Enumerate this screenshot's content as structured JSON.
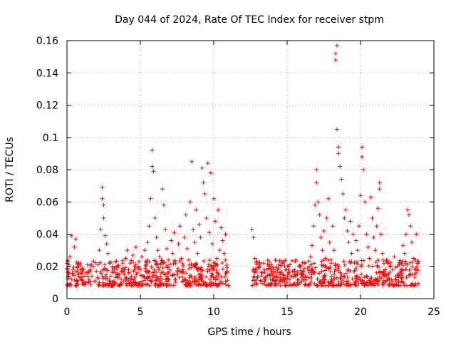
{
  "chart_data": {
    "type": "scatter",
    "title": "Day 044 of 2024, Rate Of TEC Index for receiver stpm",
    "xlabel": "GPS time / hours",
    "ylabel": "ROTI / TECUs",
    "xlim": [
      0,
      25
    ],
    "ylim": [
      0,
      0.16
    ],
    "xticks": [
      0,
      5,
      10,
      15,
      20,
      25
    ],
    "yticks": [
      0,
      0.02,
      0.04,
      0.06,
      0.08,
      0.1,
      0.12,
      0.14,
      0.16
    ],
    "xtick_labels": [
      "0",
      "5",
      "10",
      "15",
      "20",
      "25"
    ],
    "ytick_labels": [
      "0",
      "0.02",
      "0.04",
      "0.06",
      "0.08",
      "0.1",
      "0.12",
      "0.14",
      "0.16"
    ],
    "grid": true,
    "marker": "+",
    "color": "#ff0000",
    "series": [
      {
        "name": "ROTI",
        "points": [
          [
            0.1,
            0.014
          ],
          [
            0.2,
            0.026
          ],
          [
            0.3,
            0.039
          ],
          [
            0.3,
            0.012
          ],
          [
            0.4,
            0.018
          ],
          [
            0.5,
            0.032
          ],
          [
            0.6,
            0.037
          ],
          [
            0.7,
            0.02
          ],
          [
            0.8,
            0.015
          ],
          [
            0.9,
            0.022
          ],
          [
            1.0,
            0.012
          ],
          [
            1.1,
            0.018
          ],
          [
            1.2,
            0.01
          ],
          [
            1.3,
            0.016
          ],
          [
            1.4,
            0.021
          ],
          [
            1.5,
            0.012
          ],
          [
            1.6,
            0.018
          ],
          [
            1.7,
            0.014
          ],
          [
            1.8,
            0.02
          ],
          [
            1.9,
            0.011
          ],
          [
            2.0,
            0.017
          ],
          [
            2.1,
            0.021
          ],
          [
            2.2,
            0.03
          ],
          [
            2.3,
            0.043
          ],
          [
            2.4,
            0.069
          ],
          [
            2.4,
            0.062
          ],
          [
            2.5,
            0.058
          ],
          [
            2.5,
            0.05
          ],
          [
            2.6,
            0.039
          ],
          [
            2.7,
            0.034
          ],
          [
            2.8,
            0.028
          ],
          [
            2.9,
            0.022
          ],
          [
            3.0,
            0.014
          ],
          [
            3.1,
            0.019
          ],
          [
            3.2,
            0.011
          ],
          [
            3.3,
            0.016
          ],
          [
            3.4,
            0.02
          ],
          [
            3.5,
            0.013
          ],
          [
            3.6,
            0.008
          ],
          [
            3.7,
            0.017
          ],
          [
            3.8,
            0.022
          ],
          [
            3.9,
            0.015
          ],
          [
            4.0,
            0.025
          ],
          [
            4.1,
            0.03
          ],
          [
            4.2,
            0.018
          ],
          [
            4.3,
            0.022
          ],
          [
            4.4,
            0.014
          ],
          [
            4.5,
            0.027
          ],
          [
            4.6,
            0.02
          ],
          [
            4.7,
            0.032
          ],
          [
            4.8,
            0.016
          ],
          [
            4.9,
            0.023
          ],
          [
            5.0,
            0.018
          ],
          [
            5.1,
            0.026
          ],
          [
            5.2,
            0.014
          ],
          [
            5.3,
            0.03
          ],
          [
            5.4,
            0.021
          ],
          [
            5.5,
            0.035
          ],
          [
            5.6,
            0.045
          ],
          [
            5.7,
            0.062
          ],
          [
            5.8,
            0.082
          ],
          [
            5.8,
            0.092
          ],
          [
            5.9,
            0.079
          ],
          [
            6.0,
            0.05
          ],
          [
            6.1,
            0.038
          ],
          [
            6.2,
            0.03
          ],
          [
            6.3,
            0.026
          ],
          [
            6.4,
            0.022
          ],
          [
            6.5,
            0.068
          ],
          [
            6.6,
            0.058
          ],
          [
            6.7,
            0.043
          ],
          [
            6.8,
            0.031
          ],
          [
            6.9,
            0.024
          ],
          [
            7.0,
            0.018
          ],
          [
            7.1,
            0.036
          ],
          [
            7.2,
            0.028
          ],
          [
            7.3,
            0.041
          ],
          [
            7.4,
            0.022
          ],
          [
            7.5,
            0.015
          ],
          [
            7.6,
            0.034
          ],
          [
            7.7,
            0.045
          ],
          [
            7.8,
            0.025
          ],
          [
            7.9,
            0.018
          ],
          [
            8.0,
            0.038
          ],
          [
            8.1,
            0.052
          ],
          [
            8.2,
            0.031
          ],
          [
            8.3,
            0.024
          ],
          [
            8.4,
            0.06
          ],
          [
            8.5,
            0.085
          ],
          [
            8.6,
            0.043
          ],
          [
            8.7,
            0.035
          ],
          [
            8.8,
            0.055
          ],
          [
            8.9,
            0.028
          ],
          [
            9.0,
            0.046
          ],
          [
            9.1,
            0.038
          ],
          [
            9.2,
            0.081
          ],
          [
            9.3,
            0.072
          ],
          [
            9.4,
            0.065
          ],
          [
            9.5,
            0.05
          ],
          [
            9.6,
            0.084
          ],
          [
            9.7,
            0.041
          ],
          [
            9.8,
            0.078
          ],
          [
            9.9,
            0.034
          ],
          [
            10.0,
            0.062
          ],
          [
            10.1,
            0.048
          ],
          [
            10.2,
            0.025
          ],
          [
            10.3,
            0.055
          ],
          [
            10.4,
            0.03
          ],
          [
            10.5,
            0.044
          ],
          [
            10.6,
            0.036
          ],
          [
            10.7,
            0.028
          ],
          [
            10.8,
            0.04
          ],
          [
            10.9,
            0.017
          ],
          [
            12.6,
            0.043
          ],
          [
            12.7,
            0.038
          ],
          [
            12.8,
            0.025
          ],
          [
            12.9,
            0.018
          ],
          [
            13.0,
            0.014
          ],
          [
            13.1,
            0.02
          ],
          [
            13.2,
            0.011
          ],
          [
            13.3,
            0.016
          ],
          [
            13.4,
            0.022
          ],
          [
            13.5,
            0.013
          ],
          [
            13.6,
            0.018
          ],
          [
            13.7,
            0.009
          ],
          [
            13.8,
            0.015
          ],
          [
            13.9,
            0.021
          ],
          [
            14.0,
            0.012
          ],
          [
            14.1,
            0.017
          ],
          [
            14.2,
            0.024
          ],
          [
            14.3,
            0.014
          ],
          [
            14.4,
            0.019
          ],
          [
            14.5,
            0.011
          ],
          [
            14.6,
            0.016
          ],
          [
            14.7,
            0.022
          ],
          [
            14.8,
            0.013
          ],
          [
            14.9,
            0.018
          ],
          [
            15.0,
            0.012
          ],
          [
            15.1,
            0.016
          ],
          [
            15.2,
            0.021
          ],
          [
            15.3,
            0.014
          ],
          [
            15.4,
            0.009
          ],
          [
            15.5,
            0.018
          ],
          [
            15.6,
            0.024
          ],
          [
            15.7,
            0.015
          ],
          [
            15.8,
            0.012
          ],
          [
            15.9,
            0.02
          ],
          [
            16.0,
            0.014
          ],
          [
            16.1,
            0.017
          ],
          [
            16.2,
            0.022
          ],
          [
            16.3,
            0.013
          ],
          [
            16.4,
            0.019
          ],
          [
            16.5,
            0.016
          ],
          [
            16.6,
            0.026
          ],
          [
            16.7,
            0.033
          ],
          [
            16.8,
            0.045
          ],
          [
            16.9,
            0.058
          ],
          [
            17.0,
            0.08
          ],
          [
            17.0,
            0.072
          ],
          [
            17.1,
            0.06
          ],
          [
            17.2,
            0.052
          ],
          [
            17.3,
            0.038
          ],
          [
            17.4,
            0.03
          ],
          [
            17.5,
            0.042
          ],
          [
            17.6,
            0.025
          ],
          [
            17.7,
            0.05
          ],
          [
            17.8,
            0.062
          ],
          [
            17.9,
            0.035
          ],
          [
            18.0,
            0.022
          ],
          [
            18.1,
            0.045
          ],
          [
            18.2,
            0.03
          ],
          [
            18.3,
            0.148
          ],
          [
            18.3,
            0.152
          ],
          [
            18.4,
            0.157
          ],
          [
            18.4,
            0.105
          ],
          [
            18.5,
            0.094
          ],
          [
            18.5,
            0.09
          ],
          [
            18.6,
            0.082
          ],
          [
            18.7,
            0.074
          ],
          [
            18.8,
            0.065
          ],
          [
            18.9,
            0.05
          ],
          [
            19.0,
            0.055
          ],
          [
            19.1,
            0.042
          ],
          [
            19.2,
            0.035
          ],
          [
            19.3,
            0.048
          ],
          [
            19.4,
            0.028
          ],
          [
            19.5,
            0.04
          ],
          [
            19.6,
            0.022
          ],
          [
            19.7,
            0.036
          ],
          [
            19.8,
            0.03
          ],
          [
            19.9,
            0.045
          ],
          [
            20.0,
            0.064
          ],
          [
            20.1,
            0.088
          ],
          [
            20.1,
            0.094
          ],
          [
            20.2,
            0.08
          ],
          [
            20.3,
            0.06
          ],
          [
            20.4,
            0.04
          ],
          [
            20.5,
            0.032
          ],
          [
            20.6,
            0.025
          ],
          [
            20.7,
            0.063
          ],
          [
            20.8,
            0.05
          ],
          [
            20.9,
            0.038
          ],
          [
            21.0,
            0.03
          ],
          [
            21.1,
            0.045
          ],
          [
            21.2,
            0.056
          ],
          [
            21.3,
            0.072
          ],
          [
            21.3,
            0.068
          ],
          [
            21.4,
            0.04
          ],
          [
            21.5,
            0.028
          ],
          [
            21.6,
            0.022
          ],
          [
            21.7,
            0.018
          ],
          [
            21.8,
            0.024
          ],
          [
            21.9,
            0.015
          ],
          [
            22.0,
            0.02
          ],
          [
            22.1,
            0.012
          ],
          [
            22.2,
            0.018
          ],
          [
            22.3,
            0.026
          ],
          [
            22.4,
            0.014
          ],
          [
            22.5,
            0.02
          ],
          [
            22.6,
            0.011
          ],
          [
            22.7,
            0.016
          ],
          [
            22.8,
            0.022
          ],
          [
            22.9,
            0.033
          ],
          [
            23.0,
            0.028
          ],
          [
            23.1,
            0.04
          ],
          [
            23.2,
            0.055
          ],
          [
            23.3,
            0.052
          ],
          [
            23.4,
            0.045
          ],
          [
            23.5,
            0.035
          ],
          [
            23.6,
            0.025
          ],
          [
            23.7,
            0.018
          ],
          [
            23.8,
            0.04
          ],
          [
            23.9,
            0.022
          ]
        ],
        "baseline_noise": {
          "ranges": [
            [
              0,
              11
            ],
            [
              12.6,
              23.95
            ]
          ],
          "y_low": 0.008,
          "y_high": 0.024,
          "count": 900
        }
      }
    ]
  }
}
